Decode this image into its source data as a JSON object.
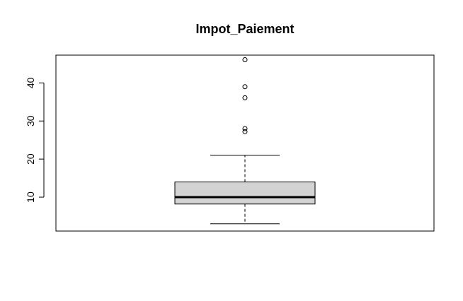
{
  "chart_data": {
    "type": "boxplot",
    "title": "Impot_Paiement",
    "xlabel": "",
    "ylabel": "",
    "ylim": [
      1.1,
      47.3
    ],
    "yticks": [
      10,
      20,
      30,
      40
    ],
    "ytick_labels": [
      "10",
      "20",
      "30",
      "40"
    ],
    "grid": false,
    "box": {
      "fill": "#d3d3d3",
      "whisker_low": 3,
      "q1": 8.2,
      "median": 10,
      "q3": 14,
      "whisker_high": 21,
      "outliers": [
        27.2,
        28,
        36.1,
        39,
        46.1
      ]
    }
  }
}
